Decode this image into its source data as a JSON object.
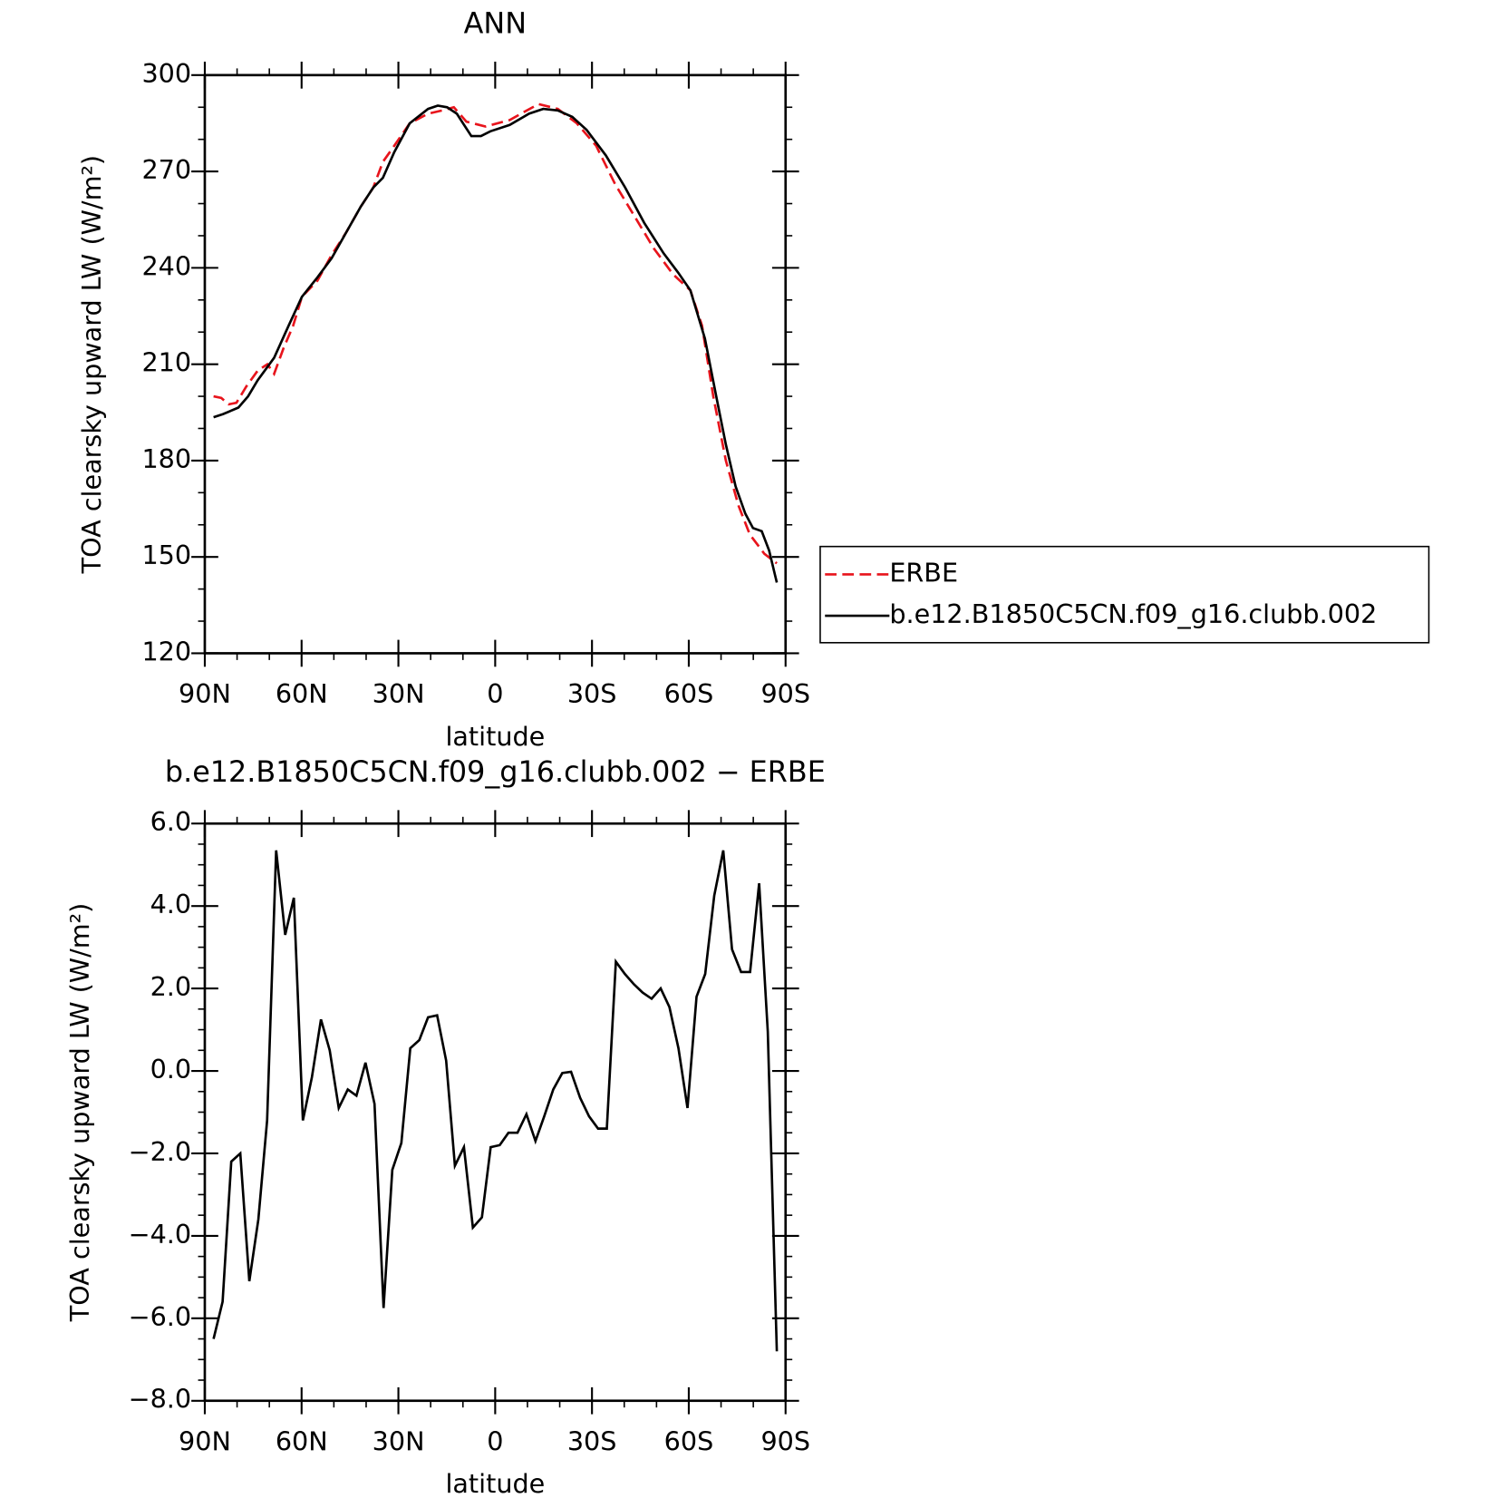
{
  "chart_data": [
    {
      "type": "line",
      "title": "ANN",
      "xlabel": "latitude",
      "ylabel": "TOA clearsky upward LW (W/m²)",
      "xlim": [
        90,
        -90
      ],
      "xticks": [
        {
          "value": 90,
          "label": "90N"
        },
        {
          "value": 60,
          "label": "60N"
        },
        {
          "value": 30,
          "label": "30N"
        },
        0,
        {
          "value": -30,
          "label": "30S"
        },
        {
          "value": -60,
          "label": "60S"
        },
        {
          "value": -90,
          "label": "90S"
        }
      ],
      "xminorticks": [
        80,
        70,
        50,
        40,
        20,
        10,
        -10,
        -20,
        -40,
        -50,
        -70,
        -80
      ],
      "ylim": [
        120,
        300
      ],
      "yticks": [
        120,
        150,
        180,
        210,
        240,
        270,
        300
      ],
      "yminorticks": [
        130,
        140,
        160,
        170,
        190,
        200,
        220,
        230,
        250,
        260,
        280,
        290
      ],
      "legend": "right",
      "series": [
        {
          "name": "ERBE",
          "color": "#e8141c",
          "dash": "dashed",
          "x": [
            87.3,
            84.9,
            82.6,
            80.2,
            77.2,
            73.6,
            70.6,
            68.5,
            65.6,
            62.6,
            59.9,
            55.1,
            50.7,
            46.2,
            41.7,
            37.8,
            34.8,
            31.3,
            26.5,
            20.8,
            16.4,
            12.8,
            8.9,
            3.0,
            -4.5,
            -8.9,
            -13.4,
            -19.4,
            -25.3,
            -31.3,
            -37.2,
            -43.2,
            -49.2,
            -55.1,
            -60.5,
            -64.1,
            -67.6,
            -71.5,
            -75.4,
            -78.9,
            -83.4,
            -87.3
          ],
          "values": [
            200,
            199.5,
            197.5,
            198,
            203,
            208,
            210,
            207,
            215,
            222,
            231,
            236,
            244,
            251,
            259,
            265,
            273,
            278,
            285,
            288,
            289,
            290,
            285.5,
            284,
            286,
            288.5,
            291,
            289.5,
            285,
            278,
            266,
            256,
            246,
            238,
            233,
            222,
            200,
            180,
            166,
            157,
            151,
            148
          ]
        },
        {
          "name": "b.e12.B1850C5CN.f09_g16.clubb.002",
          "color": "#000000",
          "dash": "solid",
          "x": [
            87.3,
            84.3,
            79.6,
            76.6,
            73.6,
            68.5,
            64.0,
            59.9,
            55.1,
            50.7,
            46.2,
            41.7,
            37.8,
            34.8,
            31.3,
            26.5,
            20.8,
            17.8,
            14.9,
            11.9,
            7.4,
            4.4,
            1.5,
            -4.5,
            -10.5,
            -14.9,
            -19.4,
            -23.9,
            -28.3,
            -34.3,
            -40.3,
            -46.2,
            -52.2,
            -56.7,
            -60.5,
            -65.0,
            -68.5,
            -71.5,
            -74.5,
            -77.5,
            -79.9,
            -82.6,
            -84.9,
            -87.3
          ],
          "values": [
            193.5,
            194.5,
            196.5,
            200,
            205,
            212,
            222,
            231,
            237,
            243,
            251,
            259,
            265,
            268,
            276,
            285,
            289.5,
            290.5,
            290,
            288,
            281,
            281,
            282.5,
            284.5,
            288,
            289.5,
            289,
            287,
            283,
            275,
            265,
            254,
            244.5,
            238.5,
            233,
            218,
            200,
            185,
            172,
            163.5,
            159,
            158,
            152,
            142
          ]
        }
      ]
    },
    {
      "type": "line",
      "title": "b.e12.B1850C5CN.f09_g16.clubb.002 − ERBE",
      "xlabel": "latitude",
      "ylabel": "TOA clearsky upward LW (W/m²)",
      "xlim": [
        90,
        -90
      ],
      "xticks": [
        {
          "value": 90,
          "label": "90N"
        },
        {
          "value": 60,
          "label": "60N"
        },
        {
          "value": 30,
          "label": "30N"
        },
        0,
        {
          "value": -30,
          "label": "30S"
        },
        {
          "value": -60,
          "label": "60S"
        },
        {
          "value": -90,
          "label": "90S"
        }
      ],
      "xminorticks": [
        80,
        70,
        50,
        40,
        20,
        10,
        -10,
        -20,
        -40,
        -50,
        -70,
        -80
      ],
      "ylim": [
        -8,
        6
      ],
      "yticks": [
        {
          "value": -8,
          "label": "−8.0"
        },
        {
          "value": -6,
          "label": "−6.0"
        },
        {
          "value": -4,
          "label": "−4.0"
        },
        {
          "value": -2,
          "label": "−2.0"
        },
        {
          "value": 0,
          "label": "0.0"
        },
        {
          "value": 2,
          "label": "2.0"
        },
        {
          "value": 4,
          "label": "4.0"
        },
        {
          "value": 6,
          "label": "6.0"
        }
      ],
      "yminorticks": [
        -7.5,
        -7,
        -6.5,
        -5.5,
        -5,
        -4.5,
        -3.5,
        -3,
        -2.5,
        -1.5,
        -1,
        -0.5,
        0.5,
        1,
        1.5,
        2.5,
        3,
        3.5,
        4.5,
        5,
        5.5
      ],
      "color": "#000000",
      "x": [
        87.3,
        84.5,
        81.8,
        79.0,
        76.2,
        73.4,
        70.7,
        67.9,
        65.1,
        62.4,
        59.6,
        56.8,
        54.0,
        51.3,
        48.5,
        45.7,
        43.0,
        40.2,
        37.4,
        34.6,
        31.9,
        29.1,
        26.3,
        23.5,
        20.8,
        18.0,
        15.2,
        12.5,
        9.7,
        6.9,
        4.1,
        1.4,
        -1.4,
        -4.1,
        -6.9,
        -9.7,
        -12.5,
        -15.2,
        -18.0,
        -20.8,
        -23.5,
        -26.3,
        -29.1,
        -31.9,
        -34.6,
        -37.4,
        -40.2,
        -43.0,
        -45.7,
        -48.5,
        -51.3,
        -54.0,
        -56.8,
        -59.6,
        -62.4,
        -65.1,
        -67.9,
        -70.7,
        -73.4,
        -76.2,
        -79.0,
        -81.8,
        -84.5,
        -87.3
      ],
      "values": [
        -6.5,
        -5.6,
        -2.2,
        -2.0,
        -5.1,
        -3.6,
        -1.2,
        5.35,
        3.3,
        4.2,
        -1.2,
        -0.15,
        1.25,
        0.5,
        -0.9,
        -0.45,
        -0.6,
        0.2,
        -0.8,
        -5.75,
        -2.4,
        -1.75,
        0.55,
        0.75,
        1.3,
        1.35,
        0.25,
        -2.3,
        -1.85,
        -3.8,
        -3.55,
        -1.85,
        -1.8,
        -1.5,
        -1.5,
        -1.05,
        -1.7,
        -1.1,
        -0.45,
        -0.05,
        -0.02,
        -0.65,
        -1.1,
        -1.4,
        -1.4,
        2.65,
        2.35,
        2.1,
        1.9,
        1.75,
        2.0,
        1.55,
        0.55,
        -0.9,
        1.8,
        2.35,
        4.25,
        5.35,
        2.95,
        2.4,
        2.4,
        4.55,
        0.95,
        -6.8
      ]
    }
  ]
}
